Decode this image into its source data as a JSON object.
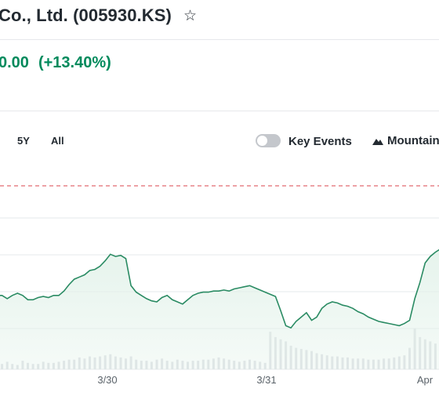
{
  "header": {
    "title": "Co., Ltd. (005930.KS)",
    "star_icon": "star-outline-icon"
  },
  "quote": {
    "change": "0.00",
    "change_percent": "(+13.40%)",
    "color": "#008a5c"
  },
  "toolbar": {
    "ranges": [
      "5Y",
      "All"
    ],
    "key_events_label": "Key Events",
    "key_events_on": false,
    "chart_type_label": "Mountain",
    "chart_type_icon": "mountain-icon"
  },
  "chart_data": {
    "type": "area",
    "x_tick_labels": [
      "3/30",
      "3/31",
      "Apr"
    ],
    "reference_line": {
      "style": "dashed",
      "color": "#e26a70"
    },
    "grid": true,
    "line_color": "#2a8b63",
    "fill_color": "#e3f2ea",
    "volume_color": "#dcdfe3",
    "series": [
      {
        "values": [
          0.48,
          0.48,
          0.45,
          0.48,
          0.5,
          0.48,
          0.44,
          0.44,
          0.46,
          0.47,
          0.46,
          0.48,
          0.48,
          0.52,
          0.58,
          0.63,
          0.65,
          0.67,
          0.71,
          0.72,
          0.75,
          0.8,
          0.86,
          0.84,
          0.85,
          0.82,
          0.57,
          0.51,
          0.48,
          0.45,
          0.43,
          0.42,
          0.46,
          0.48,
          0.44,
          0.42,
          0.4,
          0.44,
          0.48,
          0.5,
          0.51,
          0.51,
          0.52,
          0.52,
          0.53,
          0.52,
          0.54,
          0.55,
          0.56,
          0.57,
          0.55,
          0.53,
          0.51,
          0.49,
          0.47,
          0.34,
          0.2,
          0.18,
          0.24,
          0.28,
          0.32,
          0.25,
          0.28,
          0.36,
          0.4,
          0.42,
          0.41,
          0.39,
          0.38,
          0.36,
          0.33,
          0.31,
          0.28,
          0.26,
          0.24,
          0.23,
          0.22,
          0.21,
          0.2,
          0.22,
          0.25,
          0.45,
          0.6,
          0.78,
          0.84,
          0.88,
          0.91
        ]
      },
      {
        "name": "volume",
        "values": [
          6,
          5,
          7,
          5,
          4,
          8,
          6,
          5,
          5,
          7,
          6,
          6,
          7,
          8,
          9,
          9,
          11,
          10,
          12,
          11,
          12,
          13,
          14,
          12,
          11,
          10,
          12,
          9,
          8,
          8,
          7,
          9,
          10,
          8,
          7,
          9,
          8,
          7,
          8,
          8,
          9,
          9,
          10,
          11,
          10,
          9,
          8,
          7,
          8,
          9,
          8,
          7,
          6,
          35,
          30,
          28,
          26,
          22,
          20,
          19,
          18,
          17,
          15,
          14,
          13,
          12,
          12,
          11,
          11,
          10,
          10,
          10,
          9,
          9,
          9,
          10,
          10,
          11,
          12,
          13,
          20,
          38,
          30,
          28,
          26,
          24,
          22
        ]
      }
    ]
  }
}
